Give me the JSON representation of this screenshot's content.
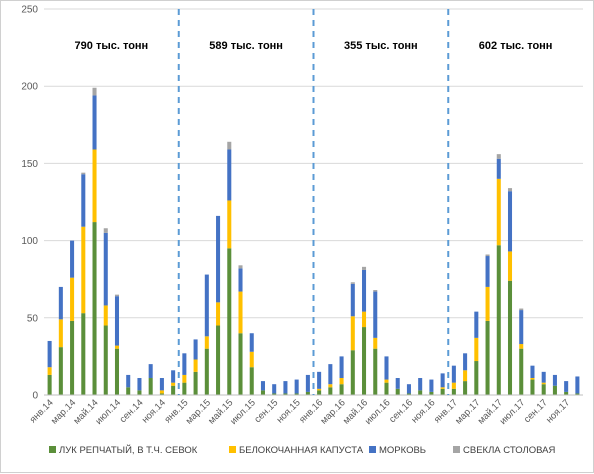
{
  "chart_data": {
    "type": "bar",
    "stacked": true,
    "ylim": [
      0,
      250
    ],
    "yticks": [
      0,
      50,
      100,
      150,
      200,
      250
    ],
    "grid": true,
    "legend_position": "bottom",
    "colors": [
      "#5b8f3a",
      "#ffc000",
      "#4472c4",
      "#a5a5a5"
    ],
    "categories": [
      "янв.14",
      "фев.14",
      "мар.14",
      "апр.14",
      "май.14",
      "июн.14",
      "июл.14",
      "авг.14",
      "сен.14",
      "окт.14",
      "ноя.14",
      "дек.14",
      "янв.15",
      "фев.15",
      "мар.15",
      "апр.15",
      "май.15",
      "июн.15",
      "июл.15",
      "авг.15",
      "сен.15",
      "окт.15",
      "ноя.15",
      "дек.15",
      "янв.16",
      "фев.16",
      "мар.16",
      "апр.16",
      "май.16",
      "июн.16",
      "июл.16",
      "авг.16",
      "сен.16",
      "окт.16",
      "ноя.16",
      "дек.16",
      "янв.17",
      "фев.17",
      "мар.17",
      "апр.17",
      "май.17",
      "июн.17",
      "июл.17",
      "авг.17",
      "сен.17",
      "окт.17",
      "ноя.17",
      "дек.17"
    ],
    "xtick_labels": [
      "янв.14",
      "мар.14",
      "май.14",
      "июл.14",
      "сен.14",
      "ноя.14",
      "янв.15",
      "мар.15",
      "май.15",
      "июл.15",
      "сен.15",
      "ноя.15",
      "янв.16",
      "мар.16",
      "май.16",
      "июл.16",
      "сен.16",
      "ноя.16",
      "янв.17",
      "мар.17",
      "май.17",
      "июл.17",
      "сен.17",
      "ноя.17"
    ],
    "series": [
      {
        "name": "ЛУК РЕПЧАТЫЙ, В Т.Ч. СЕВОК",
        "values": [
          13,
          31,
          48,
          53,
          112,
          45,
          30,
          5,
          3,
          11,
          1,
          6,
          8,
          15,
          30,
          45,
          95,
          40,
          18,
          3,
          1,
          1,
          1,
          2,
          3,
          5,
          7,
          29,
          44,
          30,
          8,
          4,
          1,
          3,
          2,
          4,
          4,
          9,
          22,
          48,
          97,
          74,
          30,
          10,
          7,
          6,
          2,
          1
        ]
      },
      {
        "name": "БЕЛОКОЧАННАЯ КАПУСТА",
        "values": [
          5,
          18,
          28,
          56,
          47,
          13,
          2,
          0,
          0,
          0,
          2,
          2,
          5,
          8,
          8,
          15,
          31,
          27,
          10,
          0,
          0,
          0,
          0,
          0,
          1,
          2,
          4,
          22,
          10,
          7,
          2,
          0,
          0,
          0,
          0,
          1,
          4,
          7,
          15,
          22,
          43,
          19,
          3,
          1,
          1,
          0,
          0,
          0
        ]
      },
      {
        "name": "МОРКОВЬ",
        "values": [
          17,
          21,
          24,
          34,
          35,
          47,
          32,
          8,
          8,
          9,
          8,
          8,
          14,
          13,
          40,
          56,
          33,
          15,
          12,
          6,
          6,
          8,
          9,
          11,
          11,
          13,
          14,
          21,
          27,
          30,
          15,
          7,
          6,
          8,
          8,
          9,
          11,
          11,
          17,
          20,
          13,
          39,
          22,
          8,
          7,
          7,
          7,
          11
        ]
      },
      {
        "name": "СВЕКЛА СТОЛОВАЯ",
        "values": [
          0,
          0,
          0,
          1,
          5,
          3,
          1,
          0,
          0,
          0,
          0,
          0,
          0,
          0,
          0,
          0,
          5,
          2,
          0,
          0,
          0,
          0,
          0,
          0,
          0,
          0,
          0,
          1,
          2,
          1,
          0,
          0,
          0,
          0,
          0,
          0,
          0,
          0,
          0,
          1,
          3,
          2,
          1,
          0,
          0,
          0,
          0,
          0
        ]
      }
    ],
    "dividers_after_category": [
      11,
      23,
      35
    ],
    "annotations": [
      "790 тыс. тонн",
      "589 тыс. тонн",
      "355 тыс. тонн",
      "602 тыс. тонн"
    ]
  }
}
